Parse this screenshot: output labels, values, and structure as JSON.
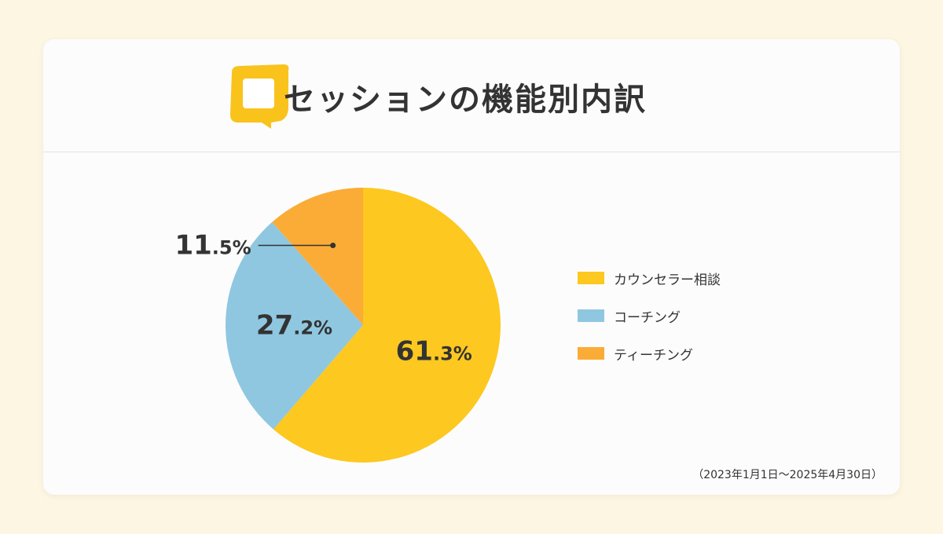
{
  "header": {
    "title": "セッションの機能別内訳"
  },
  "colors": {
    "background": "#fdf6e3",
    "accent_logo": "#f9c31c"
  },
  "chart_data": {
    "type": "pie",
    "title": "セッションの機能別内訳",
    "slices": [
      {
        "label": "カウンセラー相談",
        "value": 61.3,
        "big": "61",
        "small": ".3%",
        "color": "#fdc81f"
      },
      {
        "label": "コーチング",
        "value": 27.2,
        "big": "27",
        "small": ".2%",
        "color": "#8fc7e0"
      },
      {
        "label": "ティーチング",
        "value": 11.5,
        "big": "11",
        "small": ".5%",
        "color": "#fbac36"
      }
    ],
    "start_angle_deg": 0,
    "direction": "clockwise",
    "legend_position": "right"
  },
  "footnote": "（2023年1月1日～2025年4月30日）"
}
